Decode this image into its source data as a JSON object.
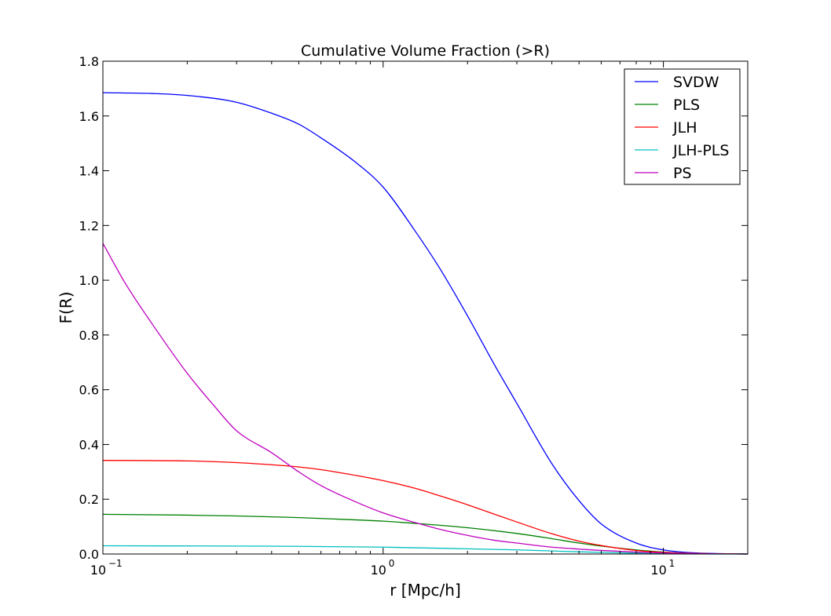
{
  "chart_data": {
    "type": "line",
    "title": "Cumulative Volume Fraction (>R)",
    "xlabel": "r [Mpc/h]",
    "ylabel": "F(R)",
    "xscale": "log",
    "xlim": [
      0.1,
      20
    ],
    "ylim": [
      0.0,
      1.8
    ],
    "grid": false,
    "legend_position": "top-right",
    "xticks": [
      {
        "value": 0.1,
        "base": "10",
        "exp": "−1"
      },
      {
        "value": 1,
        "base": "10",
        "exp": "0"
      },
      {
        "value": 10,
        "base": "10",
        "exp": "1"
      }
    ],
    "yticks": [
      "0.0",
      "0.2",
      "0.4",
      "0.6",
      "0.8",
      "1.0",
      "1.2",
      "1.4",
      "1.6",
      "1.8"
    ],
    "series": [
      {
        "name": "SVDW",
        "color": "#0000ff",
        "x": [
          0.1,
          0.15,
          0.2,
          0.3,
          0.4,
          0.5,
          0.6,
          0.8,
          1.0,
          1.3,
          1.6,
          2.0,
          2.5,
          3.0,
          4.0,
          5.0,
          6.0,
          8.0,
          10.0,
          12.0,
          15.0,
          20.0
        ],
        "y": [
          1.685,
          1.682,
          1.675,
          1.65,
          1.61,
          1.57,
          1.52,
          1.43,
          1.34,
          1.18,
          1.04,
          0.87,
          0.69,
          0.55,
          0.33,
          0.195,
          0.11,
          0.04,
          0.015,
          0.006,
          0.002,
          0.0
        ]
      },
      {
        "name": "PLS",
        "color": "#008000",
        "x": [
          0.1,
          0.2,
          0.3,
          0.5,
          0.7,
          1.0,
          1.3,
          2.0,
          3.0,
          4.0,
          5.0,
          6.0,
          8.0,
          10.0,
          12.0,
          15.0,
          20.0
        ],
        "y": [
          0.145,
          0.142,
          0.139,
          0.133,
          0.127,
          0.12,
          0.112,
          0.096,
          0.075,
          0.056,
          0.04,
          0.029,
          0.015,
          0.007,
          0.003,
          0.001,
          0.0
        ]
      },
      {
        "name": "JLH",
        "color": "#ff0000",
        "x": [
          0.1,
          0.2,
          0.3,
          0.4,
          0.5,
          0.6,
          0.7,
          0.8,
          1.0,
          1.3,
          1.6,
          2.0,
          2.5,
          3.0,
          4.0,
          5.0,
          6.0,
          8.0,
          10.0,
          12.0,
          15.0,
          20.0
        ],
        "y": [
          0.342,
          0.34,
          0.334,
          0.326,
          0.318,
          0.308,
          0.297,
          0.287,
          0.268,
          0.24,
          0.212,
          0.18,
          0.145,
          0.117,
          0.074,
          0.047,
          0.031,
          0.013,
          0.006,
          0.003,
          0.001,
          0.0
        ]
      },
      {
        "name": "JLH-PLS",
        "color": "#00bfbf",
        "x": [
          0.1,
          0.3,
          0.5,
          1.0,
          2.0,
          3.0,
          4.0,
          5.0,
          6.0,
          8.0,
          10.0,
          15.0,
          20.0
        ],
        "y": [
          0.03,
          0.029,
          0.028,
          0.025,
          0.019,
          0.015,
          0.011,
          0.008,
          0.006,
          0.003,
          0.001,
          0.0,
          0.0
        ]
      },
      {
        "name": "PS",
        "color": "#bf00bf",
        "x": [
          0.1,
          0.12,
          0.15,
          0.2,
          0.25,
          0.3,
          0.4,
          0.5,
          0.6,
          0.8,
          1.0,
          1.3,
          1.6,
          2.0,
          2.5,
          3.0,
          4.0,
          5.0,
          6.0,
          8.0,
          10.0,
          12.0,
          15.0,
          20.0
        ],
        "y": [
          1.135,
          0.99,
          0.84,
          0.66,
          0.54,
          0.45,
          0.37,
          0.3,
          0.25,
          0.19,
          0.15,
          0.115,
          0.09,
          0.068,
          0.05,
          0.04,
          0.025,
          0.018,
          0.013,
          0.007,
          0.004,
          0.002,
          0.001,
          0.0
        ]
      }
    ]
  }
}
